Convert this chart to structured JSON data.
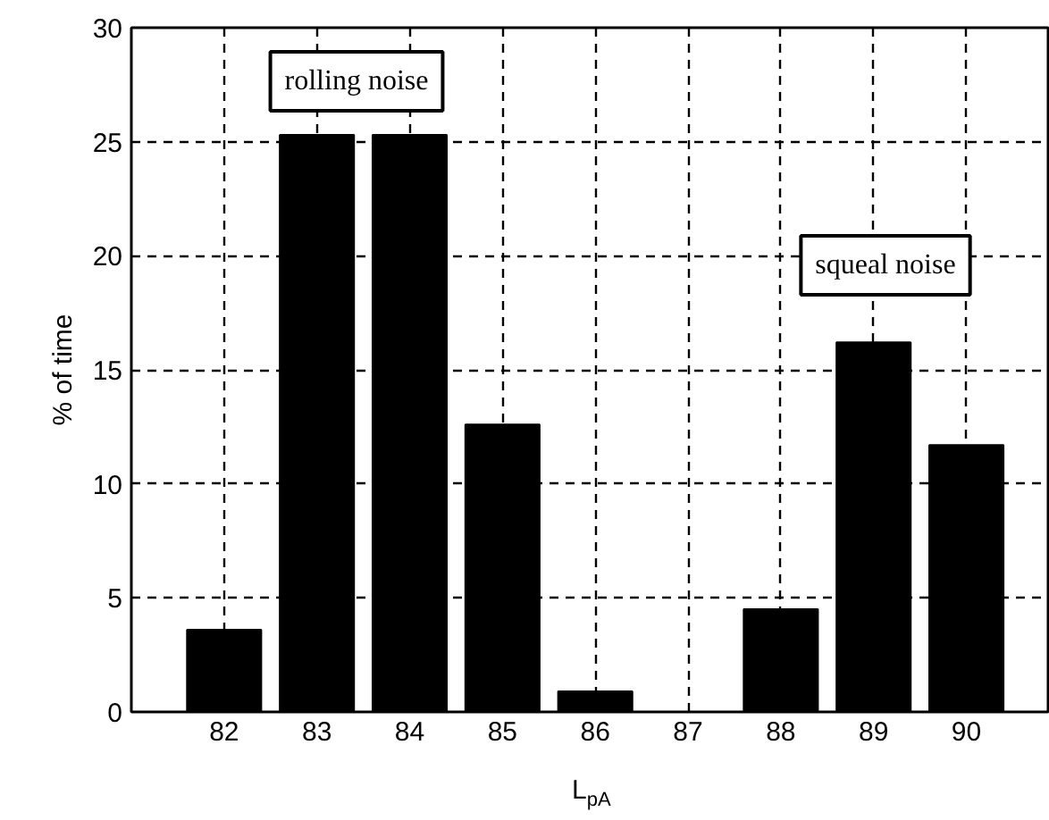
{
  "chart_data": {
    "type": "bar",
    "xlabel": "L$_{pA}$",
    "ylabel": "% of time",
    "x": [
      82,
      83,
      84,
      85,
      86,
      87,
      88,
      89,
      90
    ],
    "values": [
      3.6,
      25.3,
      25.3,
      12.6,
      0.9,
      0,
      4.5,
      16.2,
      11.7
    ],
    "color": "#000000",
    "xlim": [
      81,
      90.9
    ],
    "xticks": [
      82,
      83,
      84,
      85,
      86,
      87,
      88,
      89,
      90
    ],
    "ylim": [
      0,
      30
    ],
    "yticks": [
      0,
      5,
      10,
      15,
      20,
      25,
      30
    ],
    "grid": true,
    "annotations": [
      "rolling noise",
      "squeal noise"
    ]
  }
}
